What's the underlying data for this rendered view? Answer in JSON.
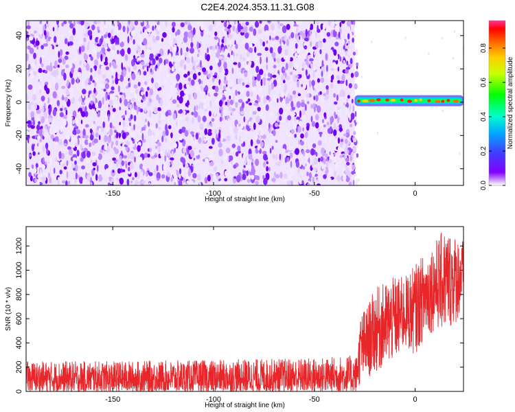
{
  "title": "C2E4.2024.353.11.31.G08",
  "chart_data": [
    {
      "type": "heatmap",
      "xlabel": "Height of straight line (km)",
      "ylabel": "Frequency (Hz)",
      "xlim": [
        -193,
        24
      ],
      "ylim": [
        -50,
        49
      ],
      "x_ticks": [
        -150,
        -100,
        -50,
        0
      ],
      "y_ticks": [
        -40,
        -20,
        0,
        20,
        40
      ],
      "colorbar": {
        "label": "Normalized spectral amplitude",
        "range": [
          0,
          0.96
        ],
        "ticks": [
          0.0,
          0.2,
          0.4,
          0.6,
          0.8
        ]
      },
      "regions": [
        {
          "x_range": [
            -193,
            -30
          ],
          "frequency_range": [
            -50,
            49
          ],
          "amplitude": "low (0.0-0.15), broadband"
        },
        {
          "x_range": [
            -30,
            24
          ],
          "frequency_range": [
            -2,
            3
          ],
          "amplitude": "high (up to ~0.95), narrowband near 0 Hz"
        }
      ]
    },
    {
      "type": "line",
      "xlabel": "Height of straight line (km)",
      "ylabel": "SNR (10 * v/v)",
      "xlim": [
        -193,
        24
      ],
      "ylim": [
        0,
        1360
      ],
      "x_ticks": [
        -150,
        -100,
        -50,
        0
      ],
      "y_ticks": [
        0,
        200,
        400,
        600,
        800,
        1000,
        1200
      ],
      "series": [
        {
          "color": "#e8262a",
          "envelope": {
            "x": [
              -193,
              -150,
              -100,
              -50,
              -29,
              -27,
              -24,
              -20,
              -15,
              -10,
              -5,
              0,
              5,
              10,
              15,
              20,
              24
            ],
            "low": [
              0,
              0,
              0,
              0,
              0,
              60,
              100,
              150,
              200,
              250,
              350,
              300,
              450,
              500,
              500,
              550,
              700
            ],
            "high": [
              250,
              250,
              260,
              280,
              300,
              650,
              700,
              850,
              900,
              950,
              950,
              1050,
              1150,
              1250,
              1350,
              1300,
              1250
            ]
          }
        }
      ]
    }
  ]
}
